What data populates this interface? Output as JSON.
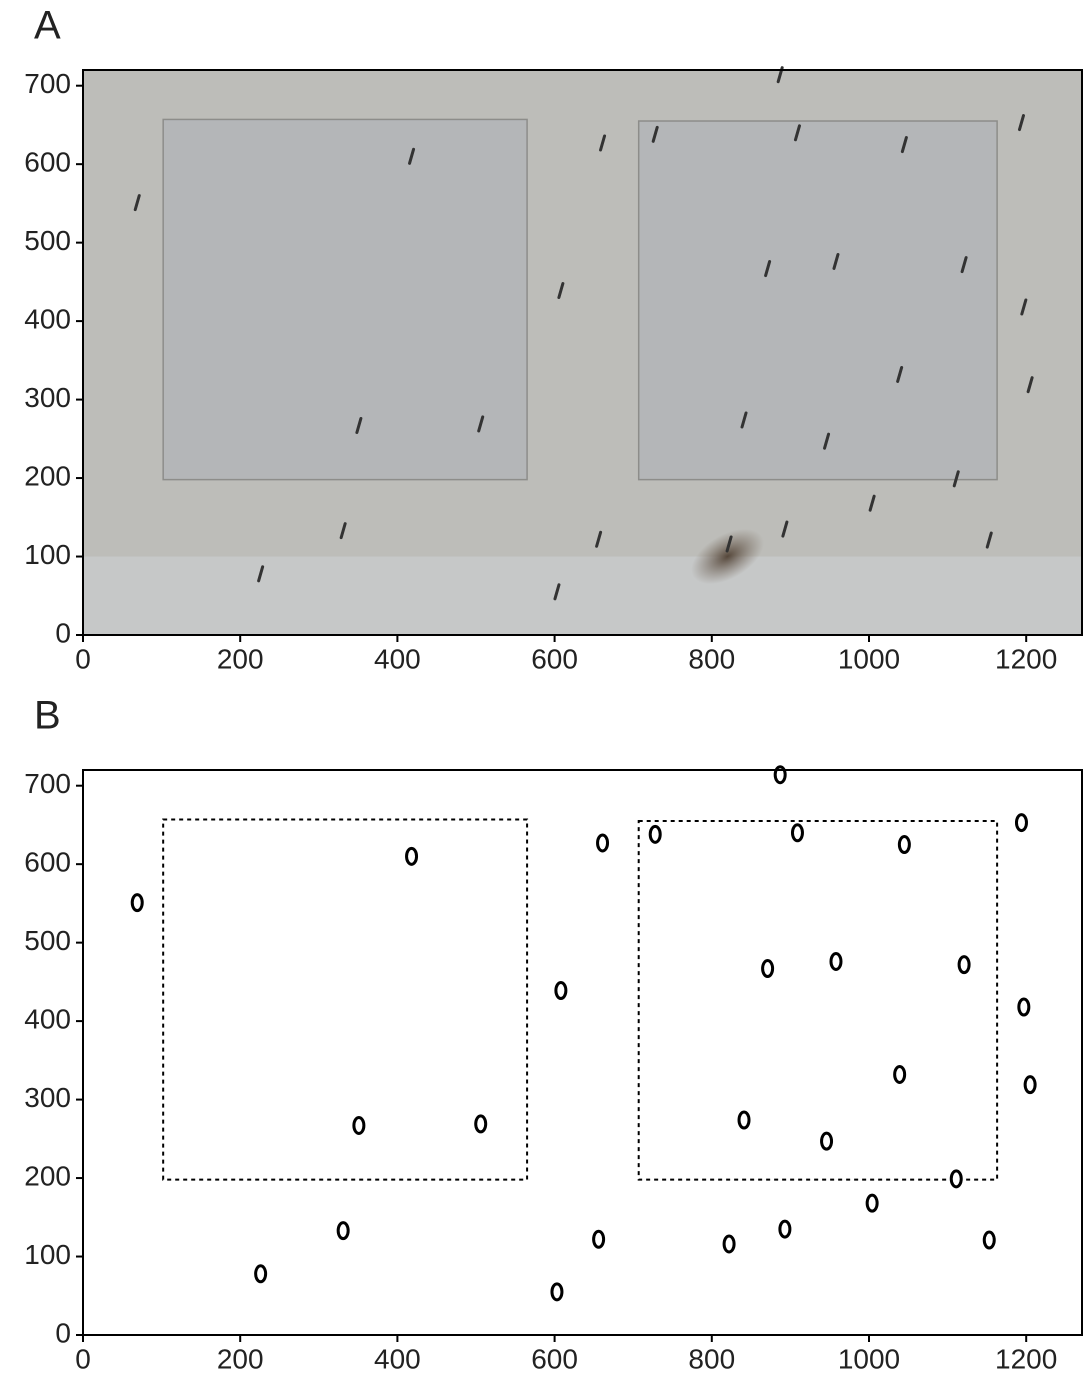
{
  "chart_data": [
    {
      "type": "image",
      "label": "A",
      "xlim": [
        0,
        1271
      ],
      "ylim": [
        0,
        720
      ],
      "xticks": [
        0,
        200,
        400,
        600,
        800,
        1000,
        1200
      ],
      "yticks": [
        0,
        100,
        200,
        300,
        400,
        500,
        600,
        700
      ]
    },
    {
      "type": "scatter",
      "label": "B",
      "xlim": [
        0,
        1271
      ],
      "ylim": [
        0,
        720
      ],
      "xticks": [
        0,
        200,
        400,
        600,
        800,
        1000,
        1200
      ],
      "yticks": [
        0,
        100,
        200,
        300,
        400,
        500,
        600,
        700
      ],
      "color": "#000000",
      "x": [
        69,
        418,
        661,
        728,
        887,
        909,
        1045,
        1194,
        608,
        871,
        958,
        1121,
        1197,
        1039,
        1205,
        351,
        506,
        841,
        946,
        1111,
        1004,
        331,
        656,
        822,
        893,
        1153,
        226,
        603
      ],
      "y": [
        551,
        610,
        627,
        638,
        714,
        640,
        625,
        653,
        439,
        467,
        476,
        472,
        418,
        332,
        319,
        267,
        269,
        274,
        247,
        199,
        168,
        133,
        122,
        116,
        135,
        121,
        78,
        55
      ],
      "regions": [
        {
          "x0": 102,
          "x1": 565,
          "y0": 198,
          "y1": 657
        },
        {
          "x0": 707,
          "x1": 1163,
          "y0": 198,
          "y1": 655
        }
      ]
    }
  ]
}
